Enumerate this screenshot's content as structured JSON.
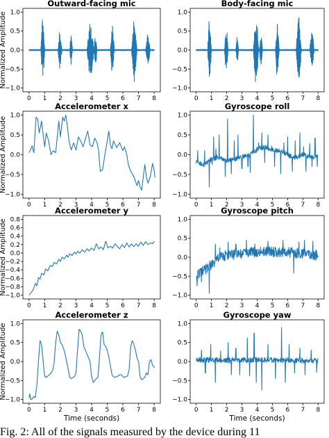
{
  "figure": {
    "caption": "Fig. 2: All of the signals measured by the device during 11"
  },
  "chart_data": [
    {
      "type": "line",
      "title": "Outward-facing mic",
      "ylabel": "Normalized Amplitude",
      "xlabel": "",
      "xlim": [
        0,
        8
      ],
      "ylim": [
        -1.0,
        1.0
      ],
      "xticks": [
        "0",
        "1",
        "2",
        "3",
        "4",
        "5",
        "6",
        "7",
        "8"
      ],
      "yticks": [
        "-1.0",
        "-0.5",
        "0.0",
        "0.5",
        "1.0"
      ],
      "grid": false,
      "line_color": "#1f77b4",
      "bursts": [
        {
          "start": 0.75,
          "end": 1.0,
          "amp": 0.92
        },
        {
          "start": 1.85,
          "end": 2.1,
          "amp": 0.55
        },
        {
          "start": 2.6,
          "end": 2.78,
          "amp": 0.4
        },
        {
          "start": 3.7,
          "end": 4.15,
          "amp": 0.8
        },
        {
          "start": 4.15,
          "end": 4.35,
          "amp": 0.42
        },
        {
          "start": 5.2,
          "end": 5.45,
          "amp": 0.72
        },
        {
          "start": 6.55,
          "end": 6.9,
          "amp": 0.88
        },
        {
          "start": 7.45,
          "end": 7.75,
          "amp": 0.44
        }
      ]
    },
    {
      "type": "line",
      "title": "Body-facing mic",
      "ylabel": "",
      "xlabel": "",
      "xlim": [
        0,
        8
      ],
      "ylim": [
        -1.0,
        1.0
      ],
      "xticks": [
        "0",
        "1",
        "2",
        "3",
        "4",
        "5",
        "6",
        "7",
        "8"
      ],
      "yticks": [
        "-1.0",
        "-0.5",
        "0.0",
        "0.5",
        "1.0"
      ],
      "grid": false,
      "line_color": "#1f77b4",
      "bursts": [
        {
          "start": 0.75,
          "end": 1.0,
          "amp": 0.92
        },
        {
          "start": 1.85,
          "end": 2.1,
          "amp": 0.6
        },
        {
          "start": 2.6,
          "end": 2.78,
          "amp": 0.42
        },
        {
          "start": 3.75,
          "end": 4.1,
          "amp": 0.95
        },
        {
          "start": 4.15,
          "end": 4.35,
          "amp": 0.48
        },
        {
          "start": 5.2,
          "end": 5.45,
          "amp": 0.8
        },
        {
          "start": 6.55,
          "end": 6.9,
          "amp": 0.9
        },
        {
          "start": 7.45,
          "end": 7.75,
          "amp": 0.5
        }
      ]
    },
    {
      "type": "line",
      "title": "Accelerometer x",
      "ylabel": "Normalized Amplitude",
      "xlabel": "",
      "xlim": [
        0,
        8
      ],
      "ylim": [
        -1.0,
        1.0
      ],
      "xticks": [
        "0",
        "1",
        "2",
        "3",
        "4",
        "5",
        "6",
        "7",
        "8"
      ],
      "yticks": [
        "-1.0",
        "-0.5",
        "0.0",
        "0.5",
        "1.0"
      ],
      "grid": false,
      "line_color": "#1f77b4",
      "x": [
        0,
        0.2,
        0.3,
        0.45,
        0.55,
        0.65,
        0.8,
        0.9,
        1.0,
        1.1,
        1.25,
        1.4,
        1.55,
        1.7,
        1.9,
        2.0,
        2.15,
        2.25,
        2.35,
        2.45,
        2.55,
        2.7,
        2.85,
        3.0,
        3.15,
        3.3,
        3.45,
        3.6,
        3.75,
        3.9,
        4.05,
        4.2,
        4.35,
        4.45,
        4.55,
        4.7,
        4.85,
        5.0,
        5.1,
        5.2,
        5.3,
        5.4,
        5.6,
        5.8,
        6.0,
        6.1,
        6.25,
        6.35,
        6.5,
        6.7,
        6.9,
        7.0,
        7.1,
        7.2,
        7.3,
        7.4,
        7.5,
        7.6,
        7.75,
        7.9,
        8.0,
        8.05
      ],
      "y": [
        0.05,
        0.22,
        0.05,
        0.95,
        0.9,
        0.55,
        0.85,
        0.5,
        0.2,
        0.55,
        0.35,
        0.0,
        0.1,
        0.05,
        0.85,
        0.45,
        0.95,
        0.85,
        1.0,
        0.72,
        0.35,
        0.12,
        0.3,
        0.12,
        0.45,
        0.35,
        0.2,
        0.4,
        0.6,
        0.25,
        0.2,
        0.42,
        0.3,
        0.1,
        -0.42,
        -0.38,
        0.0,
        0.35,
        0.6,
        0.25,
        0.15,
        0.35,
        0.18,
        0.3,
        0.1,
        0.2,
        0.0,
        -0.25,
        -0.42,
        -0.55,
        -0.78,
        -0.65,
        -0.82,
        -0.9,
        -0.58,
        -0.25,
        -0.55,
        -0.72,
        -0.55,
        -0.22,
        -0.4,
        -0.58
      ]
    },
    {
      "type": "line",
      "title": "Gyroscope roll",
      "ylabel": "",
      "xlabel": "",
      "xlim": [
        0,
        8
      ],
      "ylim": [
        -1.0,
        1.0
      ],
      "xticks": [
        "0",
        "1",
        "2",
        "3",
        "4",
        "5",
        "6",
        "7",
        "8"
      ],
      "yticks": [
        "-1.0",
        "-0.5",
        "0.0",
        "0.5",
        "1.0"
      ],
      "grid": false,
      "line_color": "#1f77b4",
      "baseline": [
        [
          0,
          -0.2
        ],
        [
          0.5,
          -0.25
        ],
        [
          1.0,
          -0.12
        ],
        [
          1.5,
          -0.05
        ],
        [
          2.0,
          -0.15
        ],
        [
          2.5,
          -0.12
        ],
        [
          3.0,
          -0.05
        ],
        [
          3.5,
          -0.02
        ],
        [
          4.0,
          0.15
        ],
        [
          4.5,
          0.2
        ],
        [
          5.0,
          0.12
        ],
        [
          5.5,
          0.1
        ],
        [
          6.0,
          0.0
        ],
        [
          6.5,
          -0.08
        ],
        [
          7.0,
          0.0
        ],
        [
          7.5,
          -0.05
        ],
        [
          8.0,
          -0.05
        ]
      ],
      "noise": 0.06,
      "spikes": [
        [
          0.1,
          0.1
        ],
        [
          0.55,
          0.1
        ],
        [
          0.85,
          -0.82
        ],
        [
          1.05,
          -0.25
        ],
        [
          1.15,
          0.45
        ],
        [
          1.3,
          0.15
        ],
        [
          1.5,
          0.5
        ],
        [
          1.9,
          -0.55
        ],
        [
          2.05,
          0.9
        ],
        [
          2.3,
          -0.48
        ],
        [
          2.5,
          0.35
        ],
        [
          2.75,
          0.5
        ],
        [
          3.0,
          -0.35
        ],
        [
          3.4,
          -0.3
        ],
        [
          3.55,
          -0.45
        ],
        [
          3.75,
          1.0
        ],
        [
          3.95,
          0.05
        ],
        [
          4.1,
          0.3
        ],
        [
          4.3,
          0.55
        ],
        [
          4.5,
          -0.2
        ],
        [
          4.7,
          0.5
        ],
        [
          4.95,
          0.22
        ],
        [
          5.15,
          -0.3
        ],
        [
          5.55,
          -0.48
        ],
        [
          5.75,
          0.3
        ],
        [
          6.0,
          0.45
        ],
        [
          6.3,
          -0.42
        ],
        [
          6.5,
          0.35
        ],
        [
          6.8,
          0.55
        ],
        [
          7.05,
          0.2
        ],
        [
          7.2,
          -0.42
        ],
        [
          7.45,
          0.28
        ],
        [
          7.6,
          -0.3
        ],
        [
          7.8,
          0.42
        ],
        [
          7.95,
          -0.3
        ]
      ]
    },
    {
      "type": "line",
      "title": "Accelerometer y",
      "ylabel": "Normalized Amplitude",
      "xlabel": "",
      "xlim": [
        0,
        8
      ],
      "ylim": [
        -1.0,
        0.8
      ],
      "xticks": [
        "0",
        "1",
        "2",
        "3",
        "4",
        "5",
        "6",
        "7",
        "8"
      ],
      "yticks": [
        "-1.0",
        "-0.8",
        "-0.6",
        "-0.4",
        "-0.2",
        "0.0",
        "0.2",
        "0.4",
        "0.6",
        "0.8"
      ],
      "grid": false,
      "line_color": "#1f77b4",
      "x": [
        0,
        0.1,
        0.25,
        0.4,
        0.5,
        0.6,
        0.7,
        0.8,
        0.95,
        1.05,
        1.2,
        1.35,
        1.5,
        1.6,
        1.75,
        1.9,
        2.0,
        2.1,
        2.25,
        2.4,
        2.5,
        2.6,
        2.75,
        2.9,
        3.0,
        3.1,
        3.25,
        3.4,
        3.55,
        3.7,
        3.85,
        4.0,
        4.15,
        4.3,
        4.45,
        4.6,
        4.75,
        4.9,
        5.05,
        5.2,
        5.35,
        5.5,
        5.65,
        5.8,
        5.95,
        6.1,
        6.25,
        6.4,
        6.55,
        6.7,
        6.85,
        7.0,
        7.15,
        7.3,
        7.45,
        7.6,
        7.75,
        7.9,
        8.0
      ],
      "y": [
        -1.0,
        -0.95,
        -0.88,
        -0.72,
        -0.78,
        -0.58,
        -0.62,
        -0.48,
        -0.52,
        -0.38,
        -0.42,
        -0.3,
        -0.32,
        -0.22,
        -0.26,
        -0.15,
        -0.2,
        -0.1,
        -0.14,
        -0.05,
        -0.1,
        -0.02,
        -0.06,
        0.02,
        -0.02,
        0.04,
        0.0,
        0.08,
        0.02,
        0.1,
        0.05,
        0.12,
        0.06,
        0.22,
        0.1,
        0.14,
        0.08,
        0.28,
        0.12,
        0.16,
        0.12,
        0.22,
        0.15,
        0.1,
        0.2,
        0.13,
        0.24,
        0.14,
        0.22,
        0.15,
        0.22,
        0.16,
        0.26,
        0.18,
        0.27,
        0.2,
        0.24,
        0.22,
        0.28
      ]
    },
    {
      "type": "line",
      "title": "Gyroscope pitch",
      "ylabel": "",
      "xlabel": "",
      "xlim": [
        0,
        8
      ],
      "ylim": [
        -1.0,
        1.0
      ],
      "xticks": [
        "0",
        "1",
        "2",
        "3",
        "4",
        "5",
        "6",
        "7",
        "8"
      ],
      "yticks": [
        "-1.0",
        "-0.5",
        "0.0",
        "0.5",
        "1.0"
      ],
      "grid": false,
      "line_color": "#1f77b4",
      "baseline": [
        [
          0,
          -0.5
        ],
        [
          0.3,
          -0.4
        ],
        [
          0.7,
          -0.3
        ],
        [
          1.0,
          -0.2
        ],
        [
          1.5,
          0.0
        ],
        [
          2.0,
          0.05
        ],
        [
          3.0,
          0.1
        ],
        [
          4.0,
          0.15
        ],
        [
          5.0,
          0.15
        ],
        [
          6.0,
          0.12
        ],
        [
          7.0,
          0.1
        ],
        [
          8.0,
          0.05
        ]
      ],
      "noise": 0.14,
      "spikes": [
        [
          0.05,
          -0.75
        ],
        [
          0.35,
          -0.65
        ],
        [
          0.85,
          -0.95
        ],
        [
          1.25,
          0.35
        ],
        [
          1.55,
          0.25
        ],
        [
          2.1,
          0.4
        ],
        [
          2.6,
          0.35
        ],
        [
          3.3,
          0.45
        ],
        [
          3.85,
          0.35
        ],
        [
          4.7,
          0.42
        ],
        [
          5.7,
          0.45
        ],
        [
          6.4,
          -0.42
        ],
        [
          6.75,
          0.4
        ],
        [
          7.1,
          0.45
        ],
        [
          7.65,
          0.42
        ]
      ]
    },
    {
      "type": "line",
      "title": "Accelerometer z",
      "ylabel": "Normalized Amplitude",
      "xlabel": "Time (seconds)",
      "xlim": [
        0,
        8
      ],
      "ylim": [
        -1.0,
        1.0
      ],
      "xticks": [
        "0",
        "1",
        "2",
        "3",
        "4",
        "5",
        "6",
        "7",
        "8"
      ],
      "yticks": [
        "-1.0",
        "-0.5",
        "0.0",
        "0.5",
        "1.0"
      ],
      "grid": false,
      "line_color": "#1f77b4",
      "x": [
        0,
        0.05,
        0.1,
        0.2,
        0.3,
        0.4,
        0.5,
        0.6,
        0.7,
        0.8,
        0.9,
        1.0,
        1.1,
        1.2,
        1.3,
        1.4,
        1.5,
        1.6,
        1.7,
        1.8,
        1.9,
        2.0,
        2.1,
        2.2,
        2.3,
        2.4,
        2.5,
        2.6,
        2.7,
        2.8,
        2.9,
        3.0,
        3.1,
        3.2,
        3.3,
        3.4,
        3.5,
        3.6,
        3.7,
        3.8,
        3.9,
        4.0,
        4.1,
        4.2,
        4.3,
        4.4,
        4.5,
        4.6,
        4.7,
        4.8,
        4.9,
        5.0,
        5.1,
        5.2,
        5.3,
        5.4,
        5.5,
        5.6,
        5.7,
        5.8,
        5.9,
        6.0,
        6.1,
        6.2,
        6.3,
        6.4,
        6.5,
        6.6,
        6.7,
        6.8,
        6.9,
        7.0,
        7.1,
        7.2,
        7.3,
        7.4,
        7.5,
        7.6,
        7.7,
        7.8,
        7.9,
        8.0,
        8.05
      ],
      "y": [
        -0.95,
        -0.85,
        -1.0,
        -0.98,
        -0.92,
        -0.95,
        -0.6,
        0.0,
        0.55,
        0.45,
        0.0,
        -0.4,
        -0.42,
        -0.38,
        -0.35,
        -0.3,
        -0.25,
        -0.05,
        0.5,
        0.8,
        0.7,
        0.5,
        0.45,
        0.35,
        0.2,
        0.0,
        -0.2,
        -0.42,
        -0.45,
        -0.42,
        -0.4,
        -0.3,
        0.3,
        0.85,
        0.8,
        0.7,
        0.4,
        0.3,
        0.2,
        0.1,
        0.0,
        -0.4,
        -0.55,
        -0.5,
        -0.45,
        -0.42,
        0.1,
        0.7,
        0.78,
        0.45,
        0.4,
        0.3,
        0.1,
        -0.1,
        -0.35,
        -0.4,
        -0.42,
        -0.4,
        -0.38,
        -0.35,
        -0.35,
        -0.4,
        -0.42,
        -0.4,
        -0.38,
        -0.2,
        0.4,
        0.55,
        0.45,
        0.3,
        0.1,
        0.0,
        -0.4,
        -0.48,
        -0.45,
        -0.42,
        -0.3,
        -0.35,
        0.0,
        0.05,
        -0.1,
        -0.15,
        -0.15
      ]
    },
    {
      "type": "line",
      "title": "Gyroscope yaw",
      "ylabel": "",
      "xlabel": "Time (seconds)",
      "xlim": [
        0,
        8
      ],
      "ylim": [
        -1.0,
        1.0
      ],
      "xticks": [
        "0",
        "1",
        "2",
        "3",
        "4",
        "5",
        "6",
        "7",
        "8"
      ],
      "yticks": [
        "-1.0",
        "-0.5",
        "0.0",
        "0.5",
        "1.0"
      ],
      "grid": false,
      "line_color": "#1f77b4",
      "baseline": [
        [
          0,
          0.05
        ],
        [
          2.0,
          0.03
        ],
        [
          4.0,
          0.05
        ],
        [
          6.0,
          0.03
        ],
        [
          8.0,
          0.02
        ]
      ],
      "noise": 0.07,
      "spikes": [
        [
          0.35,
          0.3
        ],
        [
          0.6,
          -0.3
        ],
        [
          0.95,
          0.45
        ],
        [
          1.25,
          -0.55
        ],
        [
          1.6,
          0.28
        ],
        [
          2.1,
          0.5
        ],
        [
          2.3,
          -0.35
        ],
        [
          2.6,
          0.35
        ],
        [
          2.85,
          -0.35
        ],
        [
          3.35,
          0.62
        ],
        [
          3.5,
          -0.38
        ],
        [
          3.8,
          0.75
        ],
        [
          3.95,
          -0.55
        ],
        [
          4.3,
          -0.75
        ],
        [
          4.7,
          0.45
        ],
        [
          5.2,
          -0.45
        ],
        [
          5.6,
          0.9
        ],
        [
          5.85,
          -0.55
        ],
        [
          6.1,
          0.45
        ],
        [
          6.45,
          -0.3
        ],
        [
          6.8,
          0.35
        ],
        [
          7.15,
          -0.35
        ],
        [
          7.55,
          0.3
        ],
        [
          7.9,
          -0.28
        ]
      ]
    }
  ]
}
